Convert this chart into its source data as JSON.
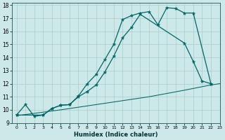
{
  "xlabel": "Humidex (Indice chaleur)",
  "bg_color": "#cce8e8",
  "grid_color": "#aacccc",
  "line_color": "#006666",
  "xlim": [
    -0.5,
    23
  ],
  "ylim": [
    9,
    18.2
  ],
  "xticks": [
    0,
    1,
    2,
    3,
    4,
    5,
    6,
    7,
    8,
    9,
    10,
    11,
    12,
    13,
    14,
    15,
    16,
    17,
    18,
    19,
    20,
    21,
    22,
    23
  ],
  "yticks": [
    9,
    10,
    11,
    12,
    13,
    14,
    15,
    16,
    17,
    18
  ],
  "line1_x": [
    0,
    1,
    2,
    3,
    4,
    5,
    6,
    7,
    8,
    9,
    10,
    11,
    12,
    13,
    14,
    15,
    16,
    17,
    18,
    19,
    20,
    22
  ],
  "line1_y": [
    9.6,
    10.4,
    9.5,
    9.6,
    10.1,
    10.35,
    10.4,
    11.05,
    12.0,
    12.7,
    13.85,
    15.0,
    16.9,
    17.2,
    17.4,
    17.5,
    16.5,
    17.8,
    17.75,
    17.4,
    17.4,
    12.0
  ],
  "line2_x": [
    0,
    3,
    4,
    5,
    6,
    7,
    8,
    9,
    10,
    11,
    12,
    13,
    14,
    19,
    20,
    21,
    22
  ],
  "line2_y": [
    9.6,
    9.6,
    10.1,
    10.35,
    10.4,
    11.0,
    11.4,
    11.9,
    12.9,
    14.1,
    15.5,
    16.3,
    17.3,
    15.1,
    13.7,
    12.2,
    12.0
  ],
  "line3_x": [
    0,
    5,
    10,
    15,
    19,
    22,
    23
  ],
  "line3_y": [
    9.55,
    10.0,
    10.5,
    11.0,
    11.5,
    11.9,
    12.0
  ]
}
